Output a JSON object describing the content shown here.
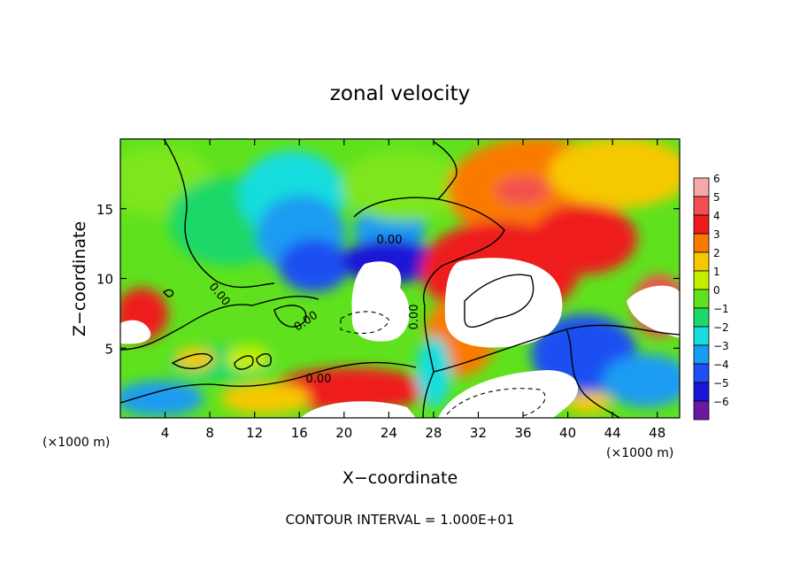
{
  "chart_data": {
    "type": "heatmap",
    "title": "zonal velocity",
    "xlabel": "X−coordinate",
    "ylabel": "Z−coordinate",
    "x_unit_left": "(×1000 m)",
    "x_unit_right": "(×1000 m)",
    "xlim": [
      0,
      50
    ],
    "ylim": [
      0,
      20
    ],
    "x_ticks": [
      4,
      8,
      12,
      16,
      20,
      24,
      28,
      32,
      36,
      40,
      44,
      48
    ],
    "y_ticks": [
      5,
      10,
      15
    ],
    "colorbar": {
      "levels": [
        6,
        5,
        4,
        3,
        2,
        1,
        0,
        -1,
        -2,
        -3,
        -4,
        -5,
        -6
      ],
      "labels": [
        "6",
        "5",
        "4",
        "3",
        "2",
        "1",
        "0",
        "−1",
        "−2",
        "−3",
        "−4",
        "−5",
        "−6"
      ],
      "colors": [
        "#f6a8a8",
        "#f25050",
        "#ee1b1b",
        "#fa7a00",
        "#f6c800",
        "#c4ee00",
        "#5fe21d",
        "#1ed869",
        "#19dddd",
        "#1a9bf2",
        "#1d4ff2",
        "#1b16d6",
        "#6a1aa2"
      ]
    },
    "contour_labels": [
      "0.00",
      "0.00",
      "0.00",
      "0.00",
      "0.00"
    ],
    "footer": "CONTOUR INTERVAL = 1.000E+01"
  }
}
